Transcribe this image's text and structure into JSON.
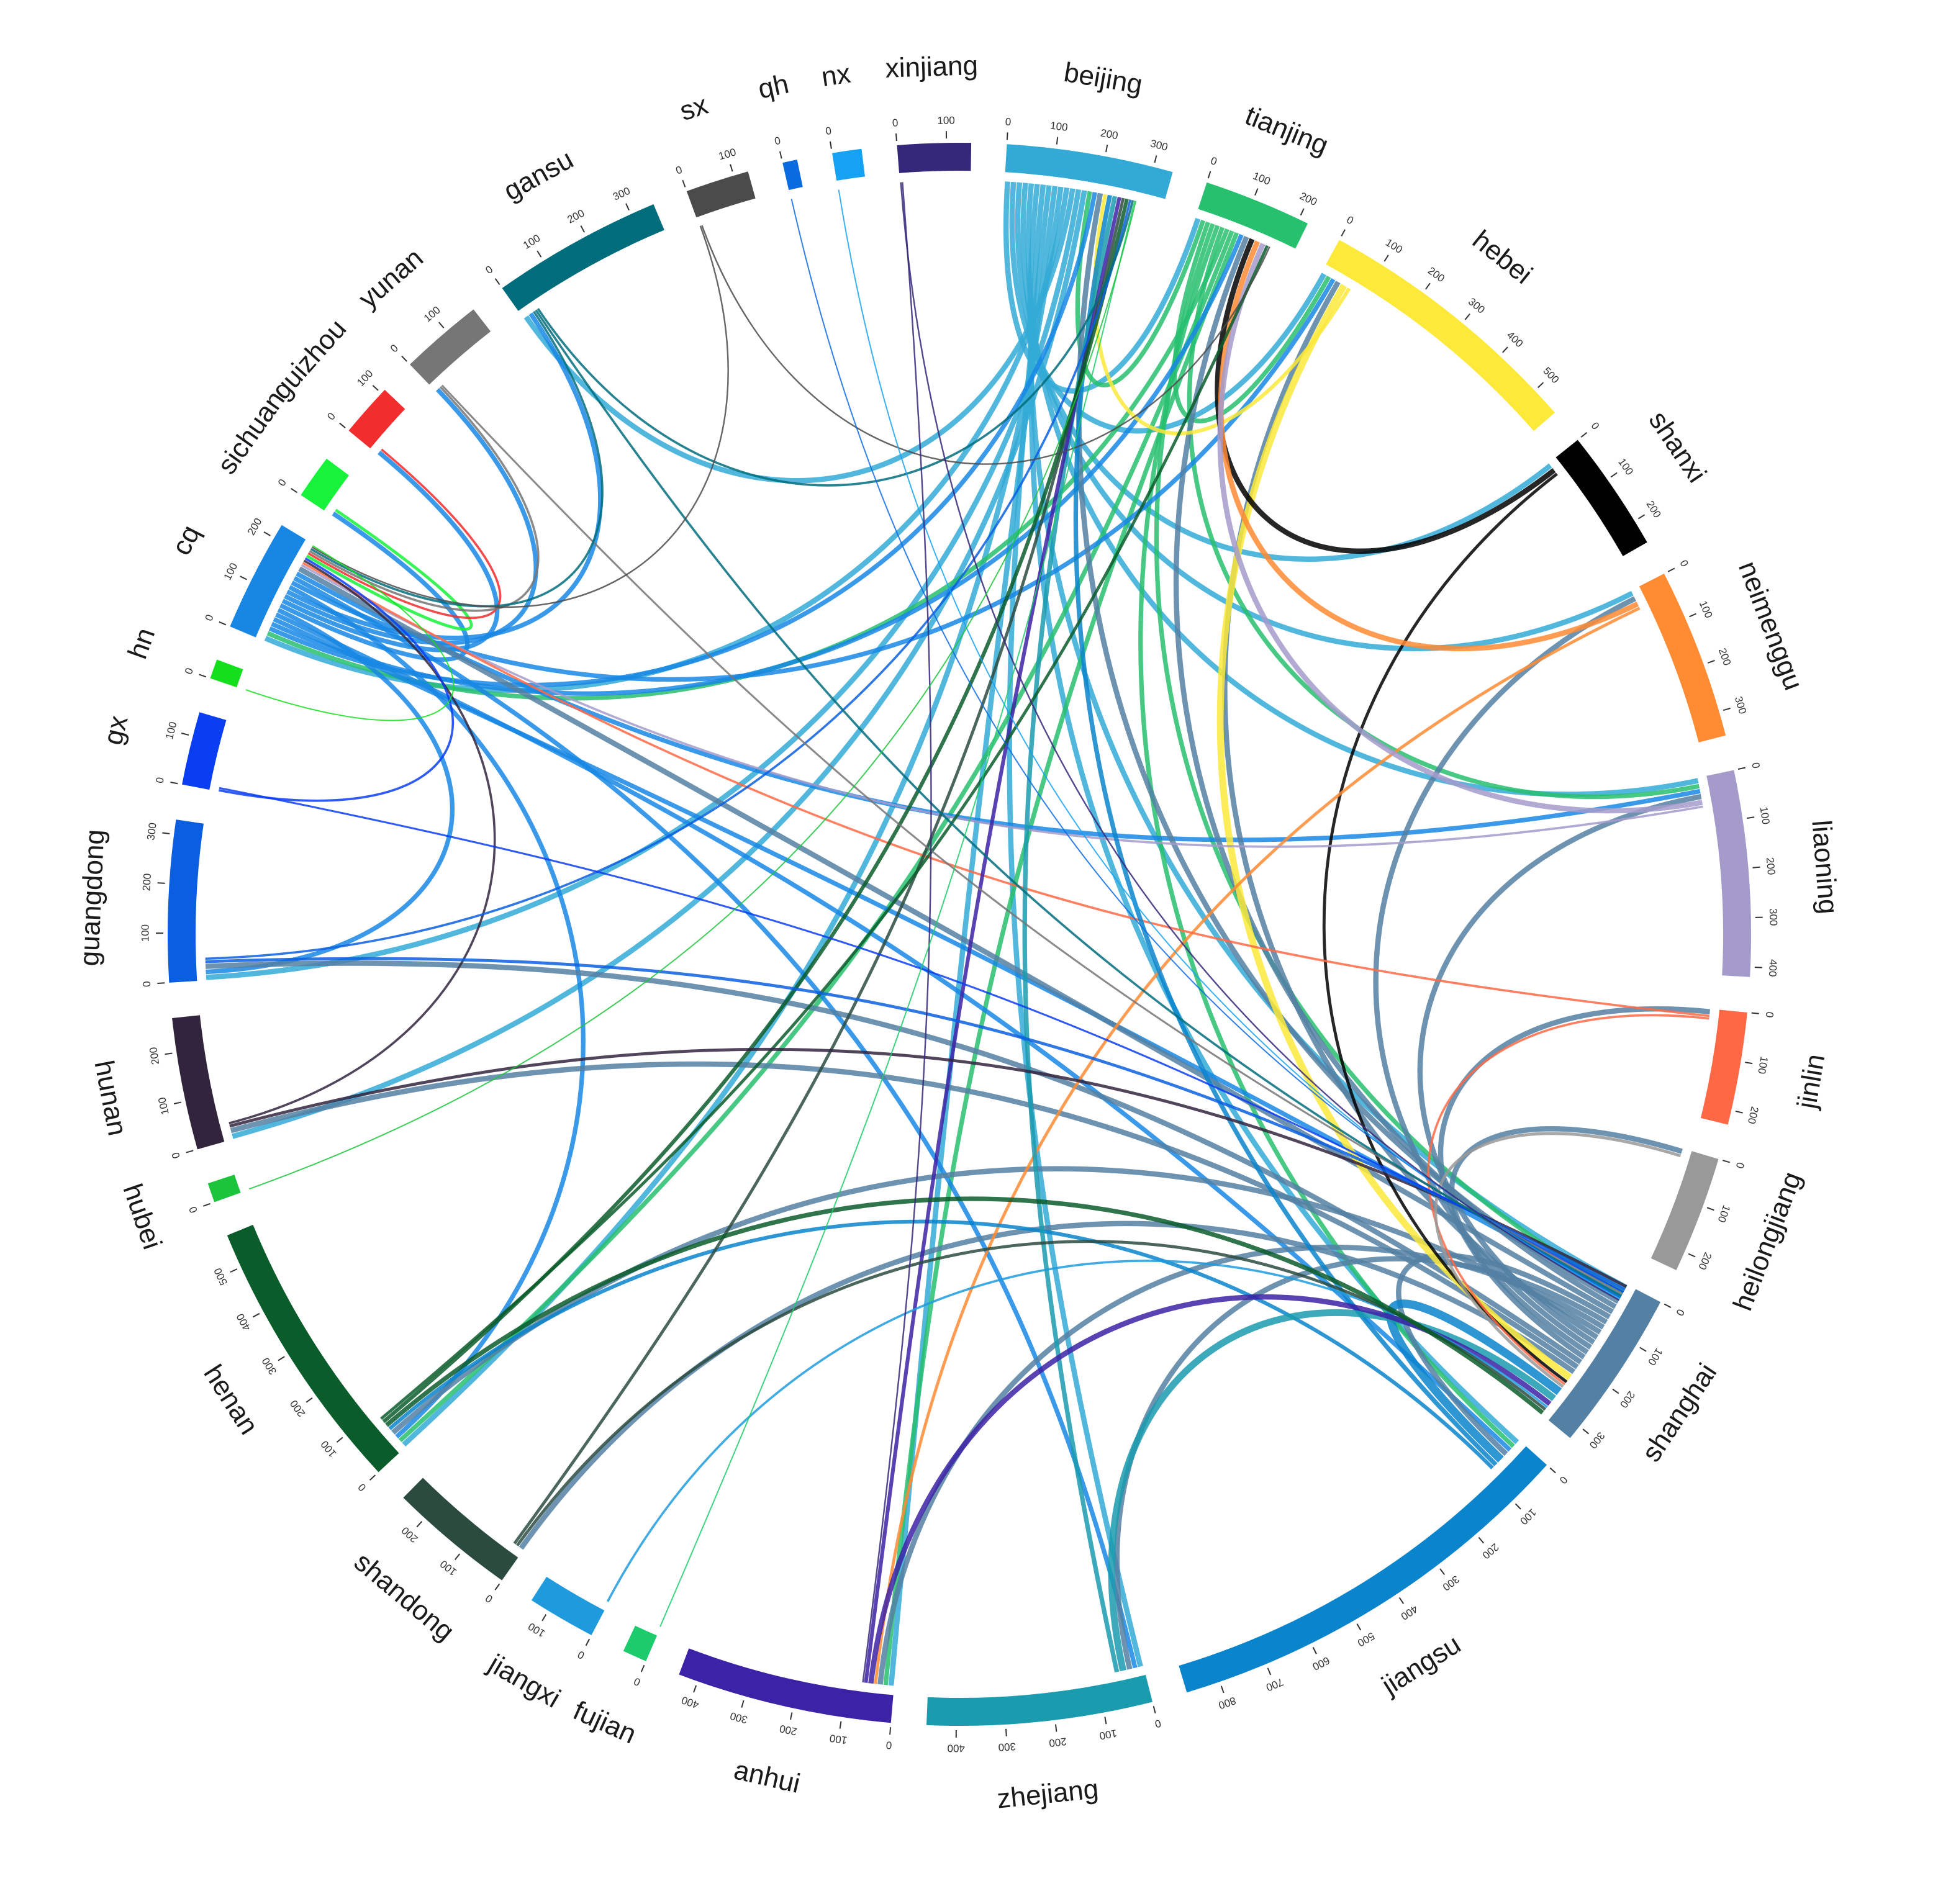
{
  "chart_data": {
    "type": "chord",
    "units_per_tick": 100,
    "nodes": [
      {
        "id": "beijing",
        "label": "beijing",
        "total": 340,
        "color": "#33AAD6"
      },
      {
        "id": "tianjing",
        "label": "tianjing",
        "total": 220,
        "color": "#27C06E"
      },
      {
        "id": "hebei",
        "label": "hebei",
        "total": 560,
        "color": "#FCE93A"
      },
      {
        "id": "shanxi",
        "label": "shanxi",
        "total": 250,
        "color": "#000000"
      },
      {
        "id": "neimenggu",
        "label": "neimenggu",
        "total": 350,
        "color": "#FF8B33"
      },
      {
        "id": "liaoning",
        "label": "liaoning",
        "total": 420,
        "color": "#A49BCB"
      },
      {
        "id": "jinlin",
        "label": "jinlin",
        "total": 230,
        "color": "#FF6845"
      },
      {
        "id": "heilongjiang",
        "label": "heilongjiang",
        "total": 240,
        "color": "#999999"
      },
      {
        "id": "shanghai",
        "label": "shanghai",
        "total": 330,
        "color": "#5380A3"
      },
      {
        "id": "jiangsu",
        "label": "jiangsu",
        "total": 870,
        "color": "#0A84CC"
      },
      {
        "id": "zhejiang",
        "label": "zhejiang",
        "total": 460,
        "color": "#1A9BAE"
      },
      {
        "id": "anhui",
        "label": "anhui",
        "total": 440,
        "color": "#3C22A6"
      },
      {
        "id": "fujian",
        "label": "fujian",
        "total": 50,
        "color": "#1CCB6B"
      },
      {
        "id": "jiangxi",
        "label": "jiangxi",
        "total": 140,
        "color": "#1F9BDD"
      },
      {
        "id": "shandong",
        "label": "shandong",
        "total": 260,
        "color": "#2B4B3F"
      },
      {
        "id": "henan",
        "label": "henan",
        "total": 570,
        "color": "#0A5C2A"
      },
      {
        "id": "hubei",
        "label": "hubei",
        "total": 40,
        "color": "#1CC43C"
      },
      {
        "id": "hunan",
        "label": "hunan",
        "total": 270,
        "color": "#33243E"
      },
      {
        "id": "guangdong",
        "label": "guangdong",
        "total": 330,
        "color": "#0A5FE0"
      },
      {
        "id": "gx",
        "label": "gx",
        "total": 150,
        "color": "#0A3EF2"
      },
      {
        "id": "hn",
        "label": "hn",
        "total": 40,
        "color": "#14DF1C"
      },
      {
        "id": "cq",
        "label": "cq",
        "total": 230,
        "color": "#1887E4"
      },
      {
        "id": "sichuan",
        "label": "sichuan",
        "total": 90,
        "color": "#17F23A"
      },
      {
        "id": "guizhou",
        "label": "guizhou",
        "total": 110,
        "color": "#F22D2D"
      },
      {
        "id": "yunan",
        "label": "yunan",
        "total": 170,
        "color": "#767676"
      },
      {
        "id": "gansu",
        "label": "gansu",
        "total": 350,
        "color": "#016D7C"
      },
      {
        "id": "sx",
        "label": "sx",
        "total": 130,
        "color": "#4B4B4B"
      },
      {
        "id": "qh",
        "label": "qh",
        "total": 30,
        "color": "#0A6AE0"
      },
      {
        "id": "nx",
        "label": "nx",
        "total": 60,
        "color": "#16A2F2"
      },
      {
        "id": "xinjiang",
        "label": "xinjiang",
        "total": 150,
        "color": "#35287A"
      }
    ],
    "ribbon_color_rule": "source",
    "hub_ribbons": [
      {
        "source": "beijing",
        "targets": [
          "tianjing",
          "hebei",
          "shanxi",
          "neimenggu",
          "liaoning",
          "shanghai",
          "jiangsu",
          "zhejiang",
          "anhui",
          "henan",
          "cq",
          "gansu",
          "guangdong",
          "hunan"
        ],
        "value": 14
      },
      {
        "source": "tianjing",
        "targets": [
          "beijing",
          "hebei",
          "shanghai",
          "jiangsu",
          "liaoning",
          "cq",
          "henan",
          "anhui"
        ],
        "value": 12
      },
      {
        "source": "cq",
        "targets": [
          "beijing",
          "tianjing",
          "shanghai",
          "jiangsu",
          "guangdong",
          "sichuan",
          "guizhou",
          "yunan",
          "gansu",
          "henan",
          "hebei",
          "zhejiang",
          "liaoning"
        ],
        "value": 12
      },
      {
        "source": "shanghai",
        "targets": [
          "beijing",
          "tianjing",
          "cq",
          "jiangsu",
          "zhejiang",
          "anhui",
          "henan",
          "hebei",
          "liaoning",
          "neimenggu",
          "heilongjiang",
          "jinlin",
          "guangdong",
          "hunan",
          "shandong"
        ],
        "value": 14
      }
    ],
    "ribbons": [
      {
        "source": "hebei",
        "target": "shanghai",
        "value": 18
      },
      {
        "source": "hebei",
        "target": "beijing",
        "value": 10
      },
      {
        "source": "shanxi",
        "target": "tianjing",
        "value": 14
      },
      {
        "source": "shanxi",
        "target": "shanghai",
        "value": 8
      },
      {
        "source": "neimenggu",
        "target": "tianjing",
        "value": 14
      },
      {
        "source": "neimenggu",
        "target": "anhui",
        "value": 8
      },
      {
        "source": "liaoning",
        "target": "tianjing",
        "value": 14
      },
      {
        "source": "liaoning",
        "target": "cq",
        "value": 6
      },
      {
        "source": "jinlin",
        "target": "cq",
        "value": 6
      },
      {
        "source": "jinlin",
        "target": "shanghai",
        "value": 6
      },
      {
        "source": "heilongjiang",
        "target": "shanghai",
        "value": 8
      },
      {
        "source": "jiangsu",
        "target": "shanghai",
        "value": 22
      },
      {
        "source": "jiangsu",
        "target": "beijing",
        "value": 12
      },
      {
        "source": "jiangsu",
        "target": "henan",
        "value": 10
      },
      {
        "source": "zhejiang",
        "target": "shanghai",
        "value": 18
      },
      {
        "source": "zhejiang",
        "target": "beijing",
        "value": 12
      },
      {
        "source": "anhui",
        "target": "shanghai",
        "value": 14
      },
      {
        "source": "anhui",
        "target": "beijing",
        "value": 10
      },
      {
        "source": "jiangxi",
        "target": "shanghai",
        "value": 6
      },
      {
        "source": "shandong",
        "target": "shanghai",
        "value": 8
      },
      {
        "source": "shandong",
        "target": "beijing",
        "value": 8
      },
      {
        "source": "henan",
        "target": "shanghai",
        "value": 12
      },
      {
        "source": "henan",
        "target": "beijing",
        "value": 10
      },
      {
        "source": "henan",
        "target": "tianjing",
        "value": 8
      },
      {
        "source": "hunan",
        "target": "shanghai",
        "value": 8
      },
      {
        "source": "hunan",
        "target": "cq",
        "value": 6
      },
      {
        "source": "guangdong",
        "target": "shanghai",
        "value": 8
      },
      {
        "source": "guangdong",
        "target": "beijing",
        "value": 6
      },
      {
        "source": "gx",
        "target": "cq",
        "value": 6
      },
      {
        "source": "gx",
        "target": "shanghai",
        "value": 5
      },
      {
        "source": "sichuan",
        "target": "cq",
        "value": 8
      },
      {
        "source": "guizhou",
        "target": "cq",
        "value": 6
      },
      {
        "source": "yunan",
        "target": "cq",
        "value": 6
      },
      {
        "source": "yunan",
        "target": "shanghai",
        "value": 5
      },
      {
        "source": "gansu",
        "target": "cq",
        "value": 6
      },
      {
        "source": "gansu",
        "target": "shanghai",
        "value": 6
      },
      {
        "source": "gansu",
        "target": "beijing",
        "value": 6
      },
      {
        "source": "sx",
        "target": "cq",
        "value": 4
      },
      {
        "source": "sx",
        "target": "tianjing",
        "value": 4
      },
      {
        "source": "qh",
        "target": "shanghai",
        "value": 3
      },
      {
        "source": "nx",
        "target": "shanghai",
        "value": 3
      },
      {
        "source": "xinjiang",
        "target": "shanghai",
        "value": 4
      },
      {
        "source": "xinjiang",
        "target": "anhui",
        "value": 4
      },
      {
        "source": "fujian",
        "target": "beijing",
        "value": 3
      },
      {
        "source": "hubei",
        "target": "beijing",
        "value": 3
      },
      {
        "source": "hn",
        "target": "cq",
        "value": 3
      }
    ],
    "title": "",
    "legend": "none"
  }
}
